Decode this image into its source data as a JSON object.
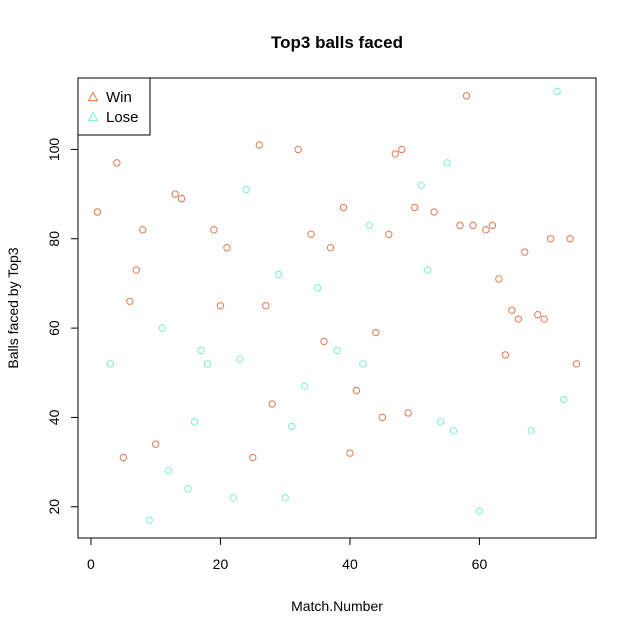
{
  "chart_data": {
    "type": "scatter",
    "title": "Top3 balls faced",
    "xlabel": "Match.Number",
    "ylabel": "Balls faced by Top3",
    "xlim": [
      -2,
      78
    ],
    "ylim": [
      13,
      116
    ],
    "x_ticks": [
      0,
      20,
      40,
      60
    ],
    "y_ticks": [
      20,
      40,
      60,
      80,
      100
    ],
    "grid": false,
    "legend_position": "top-left",
    "series": [
      {
        "name": "Win",
        "color": "#E07A50",
        "points": [
          {
            "x": 1,
            "y": 86
          },
          {
            "x": 4,
            "y": 97
          },
          {
            "x": 5,
            "y": 31
          },
          {
            "x": 6,
            "y": 66
          },
          {
            "x": 7,
            "y": 73
          },
          {
            "x": 8,
            "y": 82
          },
          {
            "x": 10,
            "y": 34
          },
          {
            "x": 13,
            "y": 90
          },
          {
            "x": 14,
            "y": 89
          },
          {
            "x": 19,
            "y": 82
          },
          {
            "x": 20,
            "y": 65
          },
          {
            "x": 21,
            "y": 78
          },
          {
            "x": 25,
            "y": 31
          },
          {
            "x": 26,
            "y": 101
          },
          {
            "x": 27,
            "y": 65
          },
          {
            "x": 28,
            "y": 43
          },
          {
            "x": 32,
            "y": 100
          },
          {
            "x": 34,
            "y": 81
          },
          {
            "x": 36,
            "y": 57
          },
          {
            "x": 37,
            "y": 78
          },
          {
            "x": 39,
            "y": 87
          },
          {
            "x": 40,
            "y": 32
          },
          {
            "x": 41,
            "y": 46
          },
          {
            "x": 44,
            "y": 59
          },
          {
            "x": 45,
            "y": 40
          },
          {
            "x": 46,
            "y": 81
          },
          {
            "x": 47,
            "y": 99
          },
          {
            "x": 48,
            "y": 100
          },
          {
            "x": 49,
            "y": 41
          },
          {
            "x": 50,
            "y": 87
          },
          {
            "x": 53,
            "y": 86
          },
          {
            "x": 57,
            "y": 83
          },
          {
            "x": 58,
            "y": 112
          },
          {
            "x": 59,
            "y": 83
          },
          {
            "x": 61,
            "y": 82
          },
          {
            "x": 62,
            "y": 83
          },
          {
            "x": 63,
            "y": 71
          },
          {
            "x": 64,
            "y": 54
          },
          {
            "x": 65,
            "y": 64
          },
          {
            "x": 66,
            "y": 62
          },
          {
            "x": 67,
            "y": 77
          },
          {
            "x": 69,
            "y": 63
          },
          {
            "x": 70,
            "y": 62
          },
          {
            "x": 71,
            "y": 80
          },
          {
            "x": 74,
            "y": 80
          },
          {
            "x": 75,
            "y": 52
          }
        ]
      },
      {
        "name": "Lose",
        "color": "#7EECD8",
        "points": [
          {
            "x": 3,
            "y": 52
          },
          {
            "x": 9,
            "y": 17
          },
          {
            "x": 11,
            "y": 60
          },
          {
            "x": 12,
            "y": 28
          },
          {
            "x": 15,
            "y": 24
          },
          {
            "x": 16,
            "y": 39
          },
          {
            "x": 17,
            "y": 55
          },
          {
            "x": 18,
            "y": 52
          },
          {
            "x": 22,
            "y": 22
          },
          {
            "x": 23,
            "y": 53
          },
          {
            "x": 24,
            "y": 91
          },
          {
            "x": 29,
            "y": 72
          },
          {
            "x": 30,
            "y": 22
          },
          {
            "x": 31,
            "y": 38
          },
          {
            "x": 33,
            "y": 47
          },
          {
            "x": 35,
            "y": 69
          },
          {
            "x": 38,
            "y": 55
          },
          {
            "x": 42,
            "y": 52
          },
          {
            "x": 43,
            "y": 83
          },
          {
            "x": 51,
            "y": 92
          },
          {
            "x": 52,
            "y": 73
          },
          {
            "x": 54,
            "y": 39
          },
          {
            "x": 55,
            "y": 97
          },
          {
            "x": 56,
            "y": 37
          },
          {
            "x": 60,
            "y": 19
          },
          {
            "x": 68,
            "y": 37
          },
          {
            "x": 72,
            "y": 113
          },
          {
            "x": 73,
            "y": 44
          }
        ]
      }
    ]
  }
}
